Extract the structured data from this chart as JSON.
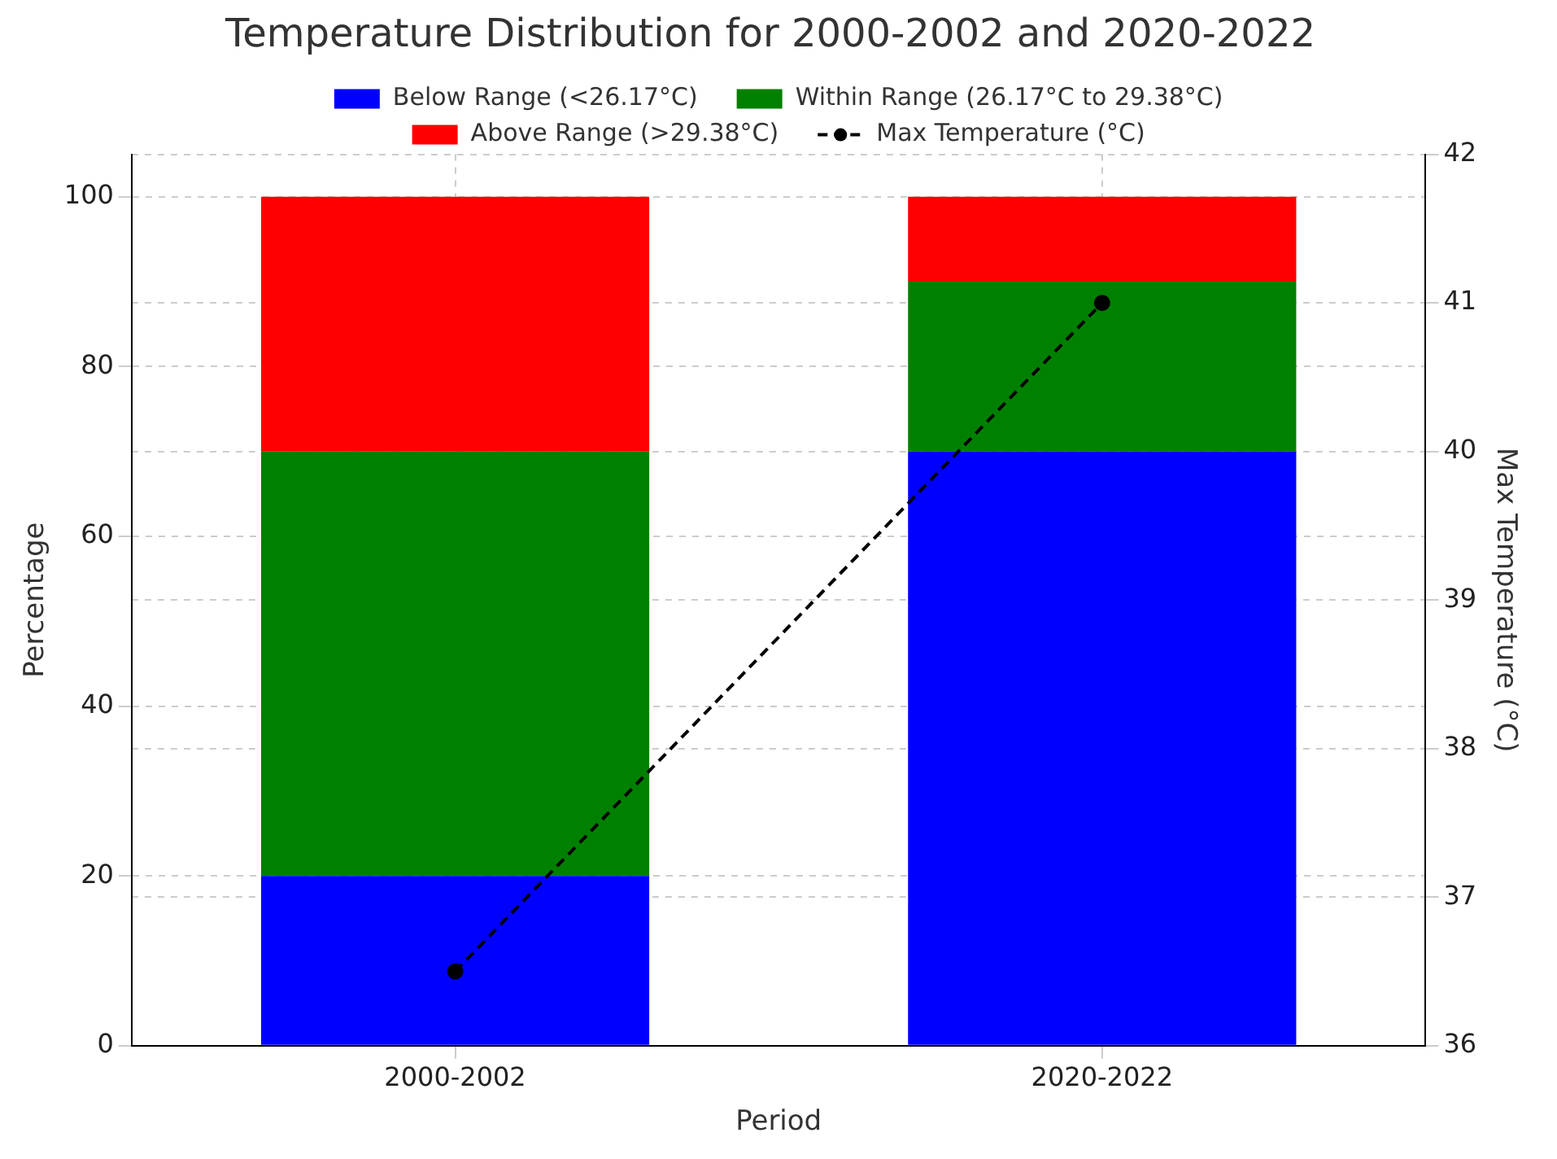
{
  "chart_data": {
    "type": "bar",
    "title": "Temperature Distribution for 2000-2002 and 2020-2022",
    "xlabel": "Period",
    "ylabel": "Percentage",
    "y2label": "Max Temperature (°C)",
    "categories": [
      "2000-2002",
      "2020-2022"
    ],
    "stacked": true,
    "series": [
      {
        "name": "Below Range (<26.17°C)",
        "color": "#0000ff",
        "values": [
          20,
          70
        ]
      },
      {
        "name": "Within Range (26.17°C to 29.38°C)",
        "color": "#008000",
        "values": [
          50,
          20
        ]
      },
      {
        "name": "Above Range (>29.38°C)",
        "color": "#ff0000",
        "values": [
          30,
          10
        ]
      },
      {
        "name": "Max Temperature (°C)",
        "type": "line",
        "axis": "y2",
        "color": "#000000",
        "values": [
          36.5,
          41
        ],
        "marker": "circle",
        "line_style": "dashed"
      }
    ],
    "ylim": [
      0,
      105
    ],
    "yticks": [
      0,
      20,
      40,
      60,
      80,
      100
    ],
    "y2lim": [
      36,
      42
    ],
    "y2ticks": [
      36,
      37,
      38,
      39,
      40,
      41,
      42
    ],
    "grid": true,
    "legend": "top"
  }
}
